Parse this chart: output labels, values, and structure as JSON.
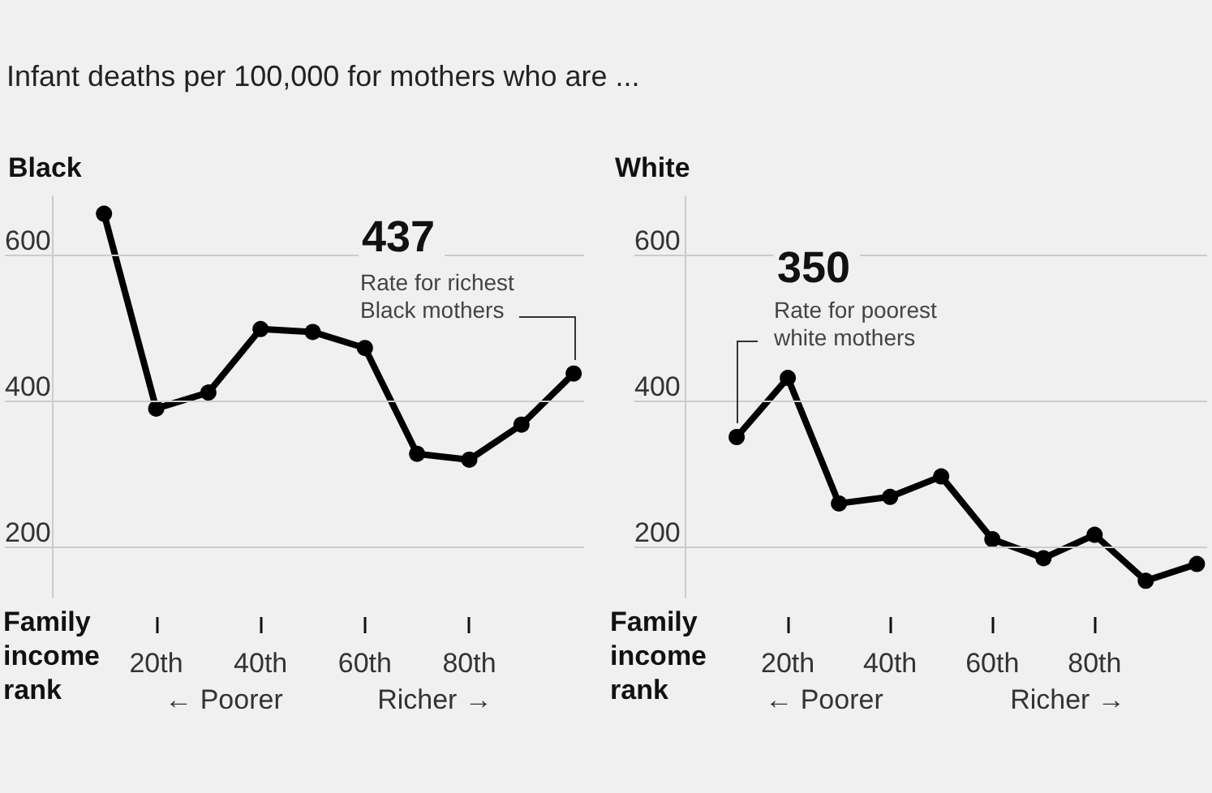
{
  "chart_data": [
    {
      "type": "line",
      "title": "Infant deaths per 100,000 for mothers who are ...",
      "subtitle": "Black",
      "xlabel": "Family income rank",
      "x": [
        10,
        20,
        30,
        40,
        50,
        60,
        70,
        80,
        90,
        100
      ],
      "series": [
        {
          "color": "#000000",
          "values": [
            656,
            389,
            411,
            498,
            494,
            472,
            327,
            319,
            367,
            437
          ]
        }
      ],
      "xlim": [
        -9,
        102
      ],
      "xticks": [
        {
          "value": 20,
          "label": "20th"
        },
        {
          "value": 40,
          "label": "40th"
        },
        {
          "value": 60,
          "label": "60th"
        },
        {
          "value": 80,
          "label": "80th"
        }
      ],
      "ylim": [
        130,
        680
      ],
      "yticks": [
        200,
        400,
        600
      ],
      "grid": "y",
      "marker": "circle",
      "line_style": "solid",
      "annotations": [
        "437",
        "Rate for richest Black mothers",
        "← Poorer",
        "Richer →"
      ]
    },
    {
      "type": "line",
      "subtitle": "White",
      "xlabel": "Family income rank",
      "x": [
        10,
        20,
        30,
        40,
        50,
        60,
        70,
        80,
        90,
        100
      ],
      "series": [
        {
          "color": "#000000",
          "values": [
            350,
            431,
            259,
            268,
            296,
            210,
            184,
            216,
            153,
            176
          ]
        }
      ],
      "xlim": [
        -10,
        102
      ],
      "xticks": [
        {
          "value": 20,
          "label": "20th"
        },
        {
          "value": 40,
          "label": "40th"
        },
        {
          "value": 60,
          "label": "60th"
        },
        {
          "value": 80,
          "label": "80th"
        }
      ],
      "ylim": [
        130,
        680
      ],
      "yticks": [
        200,
        400,
        600
      ],
      "grid": "y",
      "marker": "circle",
      "line_style": "solid",
      "annotations": [
        "350",
        "Rate for poorest white mothers",
        "← Poorer",
        "Richer →"
      ]
    }
  ]
}
